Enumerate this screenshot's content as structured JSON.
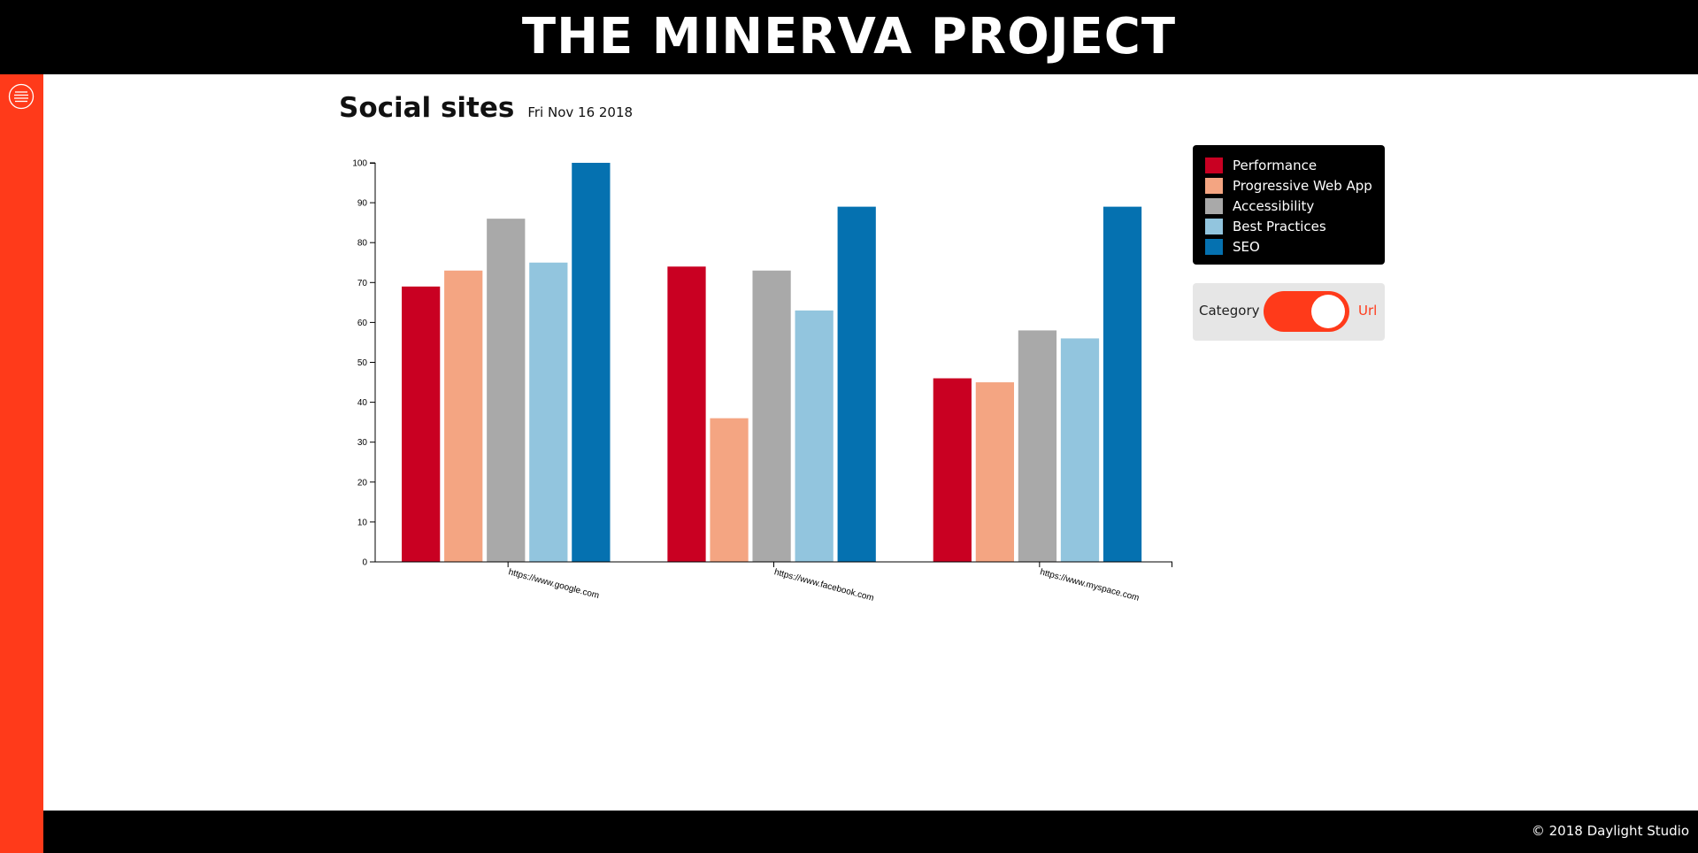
{
  "header": {
    "title": "THE MINERVA PROJECT"
  },
  "page": {
    "title": "Social sites",
    "date": "Fri Nov 16 2018"
  },
  "toggle": {
    "left_label": "Category",
    "right_label": "Url",
    "state": "Url"
  },
  "footer": {
    "text": "© 2018 Daylight Studio"
  },
  "colors": {
    "header_bg": "#000000",
    "sidebar_bg": "#ff3a1a",
    "accent": "#ff3a1a"
  },
  "icons": {
    "menu": "hamburger-circle-icon"
  },
  "chart_data": {
    "type": "bar",
    "categories": [
      "https://www.google.com",
      "https://www.facebook.com",
      "https://www.myspace.com"
    ],
    "series": [
      {
        "name": "Performance",
        "color": "#c90022",
        "values": [
          69,
          74,
          46
        ]
      },
      {
        "name": "Progressive Web App",
        "color": "#f4a582",
        "values": [
          73,
          36,
          45
        ]
      },
      {
        "name": "Accessibility",
        "color": "#a9a9a9",
        "values": [
          86,
          73,
          58
        ]
      },
      {
        "name": "Best Practices",
        "color": "#92c5de",
        "values": [
          75,
          63,
          56
        ]
      },
      {
        "name": "SEO",
        "color": "#0571b0",
        "values": [
          100,
          89,
          89
        ]
      }
    ],
    "ylim": [
      0,
      100
    ],
    "yticks": [
      0,
      10,
      20,
      30,
      40,
      50,
      60,
      70,
      80,
      90,
      100
    ],
    "xlabel": "",
    "ylabel": "",
    "grid": false,
    "legend": "right"
  }
}
